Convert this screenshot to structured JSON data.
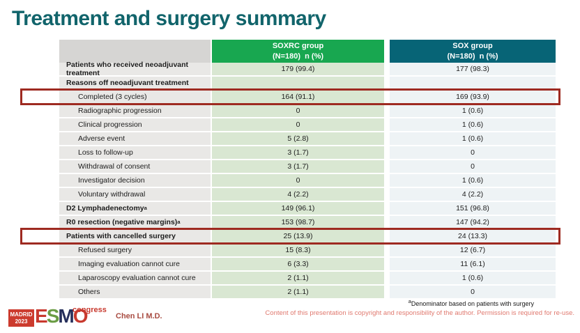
{
  "slide": {
    "title": "Treatment and surgery summary"
  },
  "table": {
    "columns": [
      {
        "name": "SOXRC group",
        "sub": "(N=180)  n (%)"
      },
      {
        "name": "SOX group",
        "sub": "(N=180)  n (%)"
      }
    ],
    "rows": [
      {
        "label": "Patients who received neoadjuvant treatment",
        "soxrc": "179 (99.4)",
        "sox": "177 (98.3)"
      },
      {
        "label": "Reasons off neoadjuvant treatment",
        "soxrc": "",
        "sox": ""
      },
      {
        "label": "Completed (3 cycles)",
        "soxrc": "164 (91.1)",
        "sox": "169 (93.9)"
      },
      {
        "label": "Radiographic progression",
        "soxrc": "0",
        "sox": "1 (0.6)"
      },
      {
        "label": "Clinical progression",
        "soxrc": "0",
        "sox": "1 (0.6)"
      },
      {
        "label": "Adverse event",
        "soxrc": "5 (2.8)",
        "sox": "1 (0.6)"
      },
      {
        "label": "Loss to follow-up",
        "soxrc": "3 (1.7)",
        "sox": "0"
      },
      {
        "label": "Withdrawal of consent",
        "soxrc": "3 (1.7)",
        "sox": "0"
      },
      {
        "label": "Investigator decision",
        "soxrc": "0",
        "sox": "1 (0.6)"
      },
      {
        "label": "Voluntary withdrawal",
        "soxrc": "4 (2.2)",
        "sox": "4 (2.2)"
      },
      {
        "label": "D2 Lymphadenectomy",
        "sup": "a",
        "soxrc": "149 (96.1)",
        "sox": "151 (96.8)"
      },
      {
        "label": "R0 resection (negative margins)",
        "sup": "a",
        "soxrc": "153 (98.7)",
        "sox": "147 (94.2)"
      },
      {
        "label": "Patients with cancelled surgery",
        "soxrc": "25 (13.9)",
        "sox": "24 (13.3)"
      },
      {
        "label": "Refused surgery",
        "soxrc": "15 (8.3)",
        "sox": "12 (6.7)"
      },
      {
        "label": "Imaging evaluation cannot cure",
        "soxrc": "6 (3.3)",
        "sox": "11 (6.1)"
      },
      {
        "label": "Laparoscopy evaluation cannot cure",
        "soxrc": "2 (1.1)",
        "sox": "1 (0.6)"
      },
      {
        "label": "Others",
        "soxrc": "2 (1.1)",
        "sox": "0"
      }
    ]
  },
  "footer": {
    "author": "Chen LI M.D.",
    "footnote_sup": "a",
    "footnote": "Denominator based on patients with surgery",
    "copyright": "Content of this presentation is copyright and responsibility of the author. Permission is required for re-use.",
    "logo": {
      "city": "MADRID",
      "year": "2023",
      "e": "E",
      "s": "S",
      "m": "M",
      "o": "O",
      "congress": "congress"
    }
  },
  "colors": {
    "title_teal": "#11646b",
    "soxrc_header_green": "#18a750",
    "sox_header_teal": "#076476",
    "soxrc_cell_green": "#d9e7d2",
    "sox_cell_blue": "#eef3f5",
    "label_cell_gray": "#e9e8e6",
    "highlight_red": "#9e2a21",
    "logo_red": "#cc3b2e",
    "copyright_salmon": "#e0796f"
  }
}
